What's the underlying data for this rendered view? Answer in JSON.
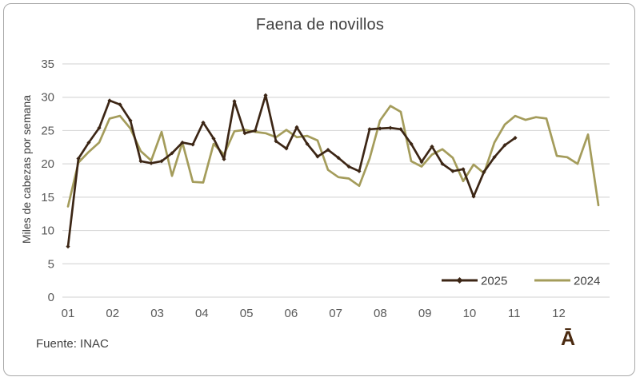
{
  "title": "Faena de novillos",
  "source_note": "Fuente: INAC",
  "watermark": "Ā",
  "colors": {
    "series_2025": "#3c2615",
    "series_2024": "#a49c5b",
    "gridline": "#d9d9d9",
    "tick_text": "#595959",
    "title_text": "#404040",
    "frame_border": "#a8a8a8",
    "watermark_text": "#4b2a10"
  },
  "legend": {
    "position": "inside-bottom-right",
    "items": [
      "2025",
      "2024"
    ]
  },
  "chart_data": {
    "type": "line",
    "title": "Faena de novillos",
    "xlabel": "",
    "ylabel": "Miles de cabezas por semana",
    "ylim": [
      0,
      35
    ],
    "y_ticks": [
      0,
      5,
      10,
      15,
      20,
      25,
      30,
      35
    ],
    "x_months": [
      "01",
      "02",
      "03",
      "04",
      "05",
      "06",
      "07",
      "08",
      "09",
      "10",
      "11",
      "12"
    ],
    "x_unit": "week of year (weekly data, months labeled 01-12)",
    "grid": "horizontal only",
    "legend_position": "inside bottom-right",
    "series": [
      {
        "name": "2025",
        "color": "#3c2615",
        "marker": "diamond",
        "start_week": 1,
        "values": [
          7.6,
          20.8,
          23.2,
          25.4,
          29.5,
          28.9,
          26.5,
          20.4,
          20.1,
          20.4,
          21.6,
          23.2,
          22.9,
          26.2,
          23.8,
          20.7,
          29.4,
          24.6,
          25.0,
          30.3,
          23.4,
          22.3,
          25.5,
          23.0,
          21.1,
          22.1,
          20.9,
          19.6,
          18.9,
          25.2,
          25.3,
          25.4,
          25.2,
          23.0,
          20.3,
          22.6,
          20.0,
          18.9,
          19.2,
          15.1,
          18.8,
          21.0,
          22.8,
          23.9
        ]
      },
      {
        "name": "2024",
        "color": "#a49c5b",
        "marker": "none",
        "start_week": 1,
        "values": [
          13.6,
          20.2,
          21.8,
          23.2,
          26.8,
          27.2,
          25.3,
          21.9,
          20.5,
          24.8,
          18.2,
          23.2,
          17.3,
          17.2,
          23.0,
          21.4,
          24.9,
          25.1,
          24.8,
          24.6,
          24.0,
          25.1,
          24.0,
          24.2,
          23.5,
          19.1,
          18.0,
          17.8,
          16.7,
          20.8,
          26.5,
          28.7,
          27.8,
          20.4,
          19.6,
          21.4,
          22.2,
          20.9,
          17.4,
          19.9,
          18.6,
          23.2,
          25.9,
          27.2,
          26.6,
          27.0,
          26.8,
          21.2,
          21.0,
          20.0,
          24.4,
          13.8
        ]
      }
    ]
  }
}
